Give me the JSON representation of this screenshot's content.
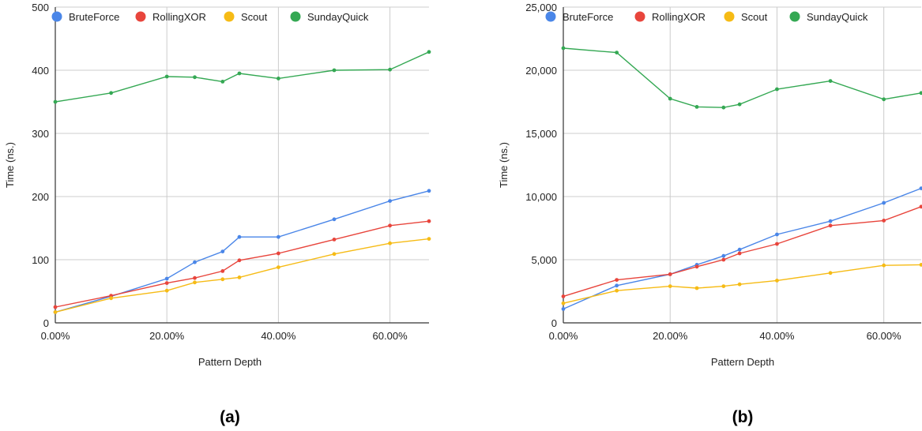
{
  "colors": {
    "BruteForce": "#4a86e8",
    "RollingXOR": "#e8453c",
    "Scout": "#f6bb15",
    "SundayQuick": "#34a853",
    "grid": "#cccccc",
    "axis": "#333333",
    "text": "#222222"
  },
  "chart_data": [
    {
      "type": "line",
      "panel_label": "(a)",
      "title": "",
      "xlabel": "Pattern Depth",
      "ylabel": "Time (ns.)",
      "xlim": [
        0,
        0.67
      ],
      "ylim": [
        0,
        500
      ],
      "x_ticks": [
        0,
        0.2,
        0.4,
        0.6
      ],
      "x_tick_labels": [
        "0.00%",
        "20.00%",
        "40.00%",
        "60.00%"
      ],
      "y_ticks": [
        0,
        100,
        200,
        300,
        400,
        500
      ],
      "y_tick_labels": [
        "0",
        "100",
        "200",
        "300",
        "400",
        "500"
      ],
      "grid": true,
      "legend": "top",
      "x": [
        0,
        0.1,
        0.2,
        0.25,
        0.3,
        0.33,
        0.4,
        0.5,
        0.6,
        0.67
      ],
      "series": [
        {
          "name": "BruteForce",
          "values": [
            17,
            42,
            70,
            96,
            113,
            136,
            136,
            164,
            193,
            209
          ]
        },
        {
          "name": "RollingXOR",
          "values": [
            25,
            43,
            63,
            71,
            82,
            99,
            110,
            132,
            154,
            161
          ]
        },
        {
          "name": "Scout",
          "values": [
            17,
            39,
            51,
            64,
            69,
            72,
            88,
            109,
            126,
            133
          ]
        },
        {
          "name": "SundayQuick",
          "values": [
            350,
            364,
            390,
            389,
            382,
            395,
            387,
            400,
            401,
            429
          ]
        }
      ]
    },
    {
      "type": "line",
      "panel_label": "(b)",
      "title": "",
      "xlabel": "Pattern Depth",
      "ylabel": "Time (ns.)",
      "xlim": [
        0,
        0.67
      ],
      "ylim": [
        0,
        25000
      ],
      "x_ticks": [
        0,
        0.2,
        0.4,
        0.6
      ],
      "x_tick_labels": [
        "0.00%",
        "20.00%",
        "40.00%",
        "60.00%"
      ],
      "y_ticks": [
        0,
        5000,
        10000,
        15000,
        20000,
        25000
      ],
      "y_tick_labels": [
        "0",
        "5,000",
        "10,000",
        "15,000",
        "20,000",
        "25,000"
      ],
      "grid": true,
      "legend": "top",
      "x": [
        0,
        0.1,
        0.2,
        0.25,
        0.3,
        0.33,
        0.4,
        0.5,
        0.6,
        0.67
      ],
      "series": [
        {
          "name": "BruteForce",
          "values": [
            1100,
            2950,
            3850,
            4600,
            5300,
            5800,
            7000,
            8050,
            9500,
            10650
          ]
        },
        {
          "name": "RollingXOR",
          "values": [
            2100,
            3400,
            3850,
            4450,
            5000,
            5500,
            6250,
            7700,
            8100,
            9200
          ]
        },
        {
          "name": "Scout",
          "values": [
            1550,
            2550,
            2900,
            2750,
            2900,
            3050,
            3350,
            3950,
            4550,
            4600
          ]
        },
        {
          "name": "SundayQuick",
          "values": [
            21750,
            21400,
            17750,
            17100,
            17050,
            17300,
            18500,
            19150,
            17700,
            18200
          ]
        }
      ]
    }
  ]
}
